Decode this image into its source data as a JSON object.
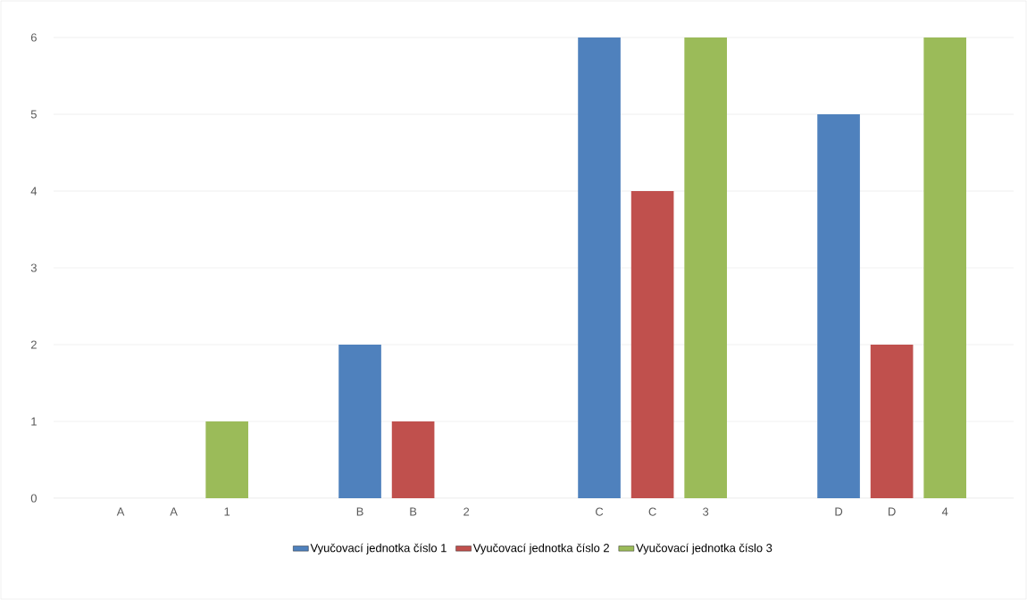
{
  "chart_data": {
    "type": "bar",
    "categories": [
      "A",
      "A",
      "1",
      "B",
      "B",
      "2",
      "C",
      "C",
      "3",
      "D",
      "D",
      "4"
    ],
    "series": [
      {
        "name": "Vyučovací jednotka číslo 1",
        "color": "#4f81bd",
        "values": [
          0,
          null,
          null,
          2,
          null,
          null,
          6,
          null,
          null,
          5,
          null,
          null
        ]
      },
      {
        "name": "Vyučovací jednotka číslo 2",
        "color": "#c0504d",
        "values": [
          null,
          0,
          null,
          null,
          1,
          null,
          null,
          4,
          null,
          null,
          2,
          null
        ]
      },
      {
        "name": "Vyučovací jednotka číslo 3",
        "color": "#9bbb59",
        "values": [
          null,
          null,
          1,
          null,
          null,
          0,
          null,
          null,
          6,
          null,
          null,
          6
        ]
      }
    ],
    "ylim": [
      0,
      6
    ],
    "yticks": [
      0,
      1,
      2,
      3,
      4,
      5,
      6
    ],
    "grid": "y",
    "legend": "bottom"
  }
}
